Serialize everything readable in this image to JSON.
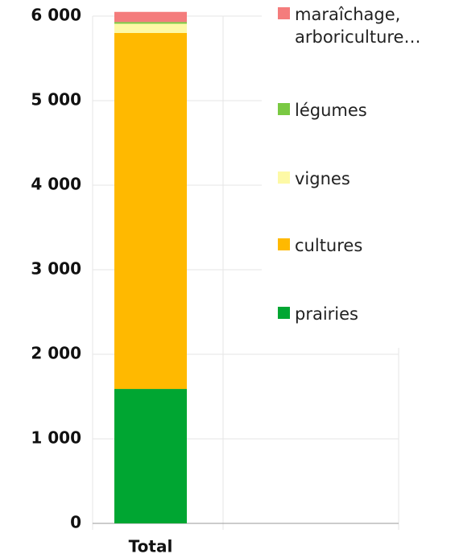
{
  "chart_data": {
    "type": "stacked_bar",
    "categories": [
      "Total"
    ],
    "series": [
      {
        "name": "prairies",
        "color": "#00a632",
        "values": [
          1590
        ]
      },
      {
        "name": "cultures",
        "color": "#ffb900",
        "values": [
          4210
        ]
      },
      {
        "name": "vignes",
        "color": "#fdf9a6",
        "values": [
          110
        ]
      },
      {
        "name": "légumes",
        "color": "#7ac943",
        "values": [
          20
        ]
      },
      {
        "name": "maraîchage, arboriculture…",
        "color": "#f47c7c",
        "values": [
          120
        ]
      }
    ],
    "ylim": [
      0,
      6000
    ],
    "yticks": [
      0,
      {
        "value": 1000,
        "label": "1 000"
      },
      {
        "value": 2000,
        "label": "2 000"
      },
      {
        "value": 3000,
        "label": "3 000"
      },
      {
        "value": 4000,
        "label": "4 000"
      },
      {
        "value": 5000,
        "label": "5 000"
      },
      {
        "value": 6000,
        "label": "6 000"
      }
    ],
    "grid": true
  }
}
